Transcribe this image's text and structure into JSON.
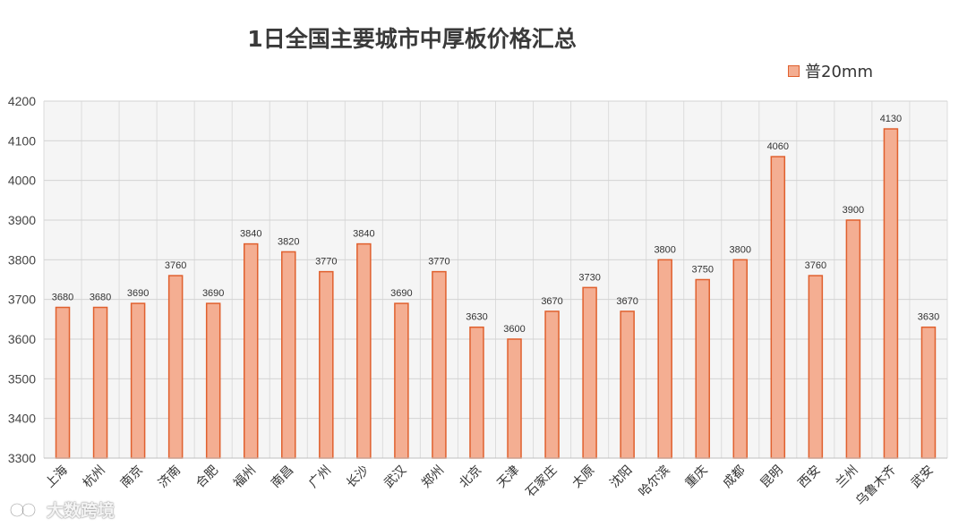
{
  "chart_data": {
    "type": "bar",
    "title": "1日全国主要城市中厚板价格汇总",
    "categories": [
      "上海",
      "杭州",
      "南京",
      "济南",
      "合肥",
      "福州",
      "南昌",
      "广州",
      "长沙",
      "武汉",
      "郑州",
      "北京",
      "天津",
      "石家庄",
      "太原",
      "沈阳",
      "哈尔滨",
      "重庆",
      "成都",
      "昆明",
      "西安",
      "兰州",
      "乌鲁木齐",
      "武安"
    ],
    "series": [
      {
        "name": "普20mm",
        "values": [
          3680,
          3680,
          3690,
          3760,
          3690,
          3840,
          3820,
          3770,
          3840,
          3690,
          3770,
          3630,
          3600,
          3670,
          3730,
          3670,
          3800,
          3750,
          3800,
          4060,
          3760,
          3900,
          4130,
          3630
        ]
      }
    ],
    "yticks": [
      "3300",
      "3400",
      "3500",
      "3600",
      "3700",
      "3800",
      "3900",
      "4000",
      "4100",
      "4200"
    ],
    "ylim": [
      3300,
      4200
    ],
    "grid": true,
    "legend_position": "top-right",
    "bar_fill": "#f4ae92",
    "bar_stroke": "#e0602e",
    "plot_background": "#f5f5f5"
  },
  "watermark": {
    "text": "大数跨境",
    "icon": "link-logo-icon"
  }
}
